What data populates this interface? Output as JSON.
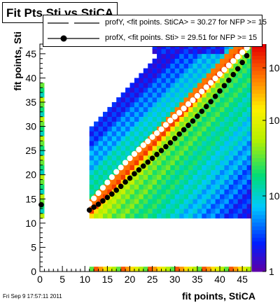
{
  "chart_data": {
    "type": "heatmap",
    "title": "Fit Pts Sti vs StiCA",
    "xlabel": "fit points, StiCA",
    "ylabel": "fit points, Sti",
    "xlim": [
      0,
      47
    ],
    "ylim": [
      0,
      47
    ],
    "x_ticks": [
      0,
      5,
      10,
      15,
      20,
      25,
      30,
      35,
      40,
      45
    ],
    "y_ticks": [
      0,
      5,
      10,
      15,
      20,
      25,
      30,
      35,
      40,
      45
    ],
    "z_scale": "log",
    "z_ticks": [
      "1",
      "10",
      "10",
      "10"
    ],
    "legend": [
      {
        "label": "profY, <fit points. StiCA> =   30.27 for NFP >= 15",
        "style": "dashed",
        "color": "#000000"
      },
      {
        "label": "profX, <fit points. Sti> =   29.51 for NFP >= 15",
        "style": "solid-marker",
        "color": "#000000"
      }
    ],
    "series": [
      {
        "style": "open-circle",
        "x": [
          11,
          12,
          13,
          14,
          15,
          16,
          17,
          18,
          19,
          20,
          21,
          22,
          23,
          24,
          25,
          26,
          27,
          28,
          29,
          30,
          31,
          32,
          33,
          34,
          35,
          36,
          37,
          38,
          39,
          40,
          41,
          42,
          43,
          44,
          45,
          46
        ],
        "y": [
          14,
          15.1,
          16.2,
          17.3,
          18.4,
          19.5,
          20.6,
          21.5,
          22.5,
          23.4,
          24.3,
          25.2,
          26.1,
          26.9,
          27.8,
          28.6,
          29.4,
          30.3,
          31.2,
          32.0,
          32.8,
          33.7,
          34.6,
          35.4,
          36.3,
          37.2,
          38.1,
          39.0,
          39.9,
          40.8,
          41.7,
          42.6,
          43.5,
          44.4,
          45.3,
          46.2
        ]
      },
      {
        "style": "filled-circle",
        "x": [
          11,
          12,
          13,
          14,
          15,
          16,
          17,
          18,
          19,
          20,
          21,
          22,
          23,
          24,
          25,
          26,
          27,
          28,
          29,
          30,
          31,
          32,
          33,
          34,
          35,
          36,
          37,
          38,
          39,
          40,
          41,
          42,
          43,
          44,
          45,
          46
        ],
        "y": [
          12.7,
          13.3,
          13.9,
          14.6,
          15.3,
          16.0,
          16.8,
          17.6,
          18.5,
          19.3,
          20.2,
          21.0,
          21.8,
          22.6,
          23.4,
          24.2,
          25.0,
          25.8,
          26.6,
          27.5,
          28.4,
          29.3,
          30.2,
          31.1,
          32.1,
          33.1,
          34.1,
          35.1,
          36.2,
          37.3,
          38.4,
          39.5,
          40.7,
          41.9,
          43.2,
          44.6
        ]
      }
    ],
    "x_marker": {
      "x": 0.3,
      "y": 13.8
    }
  },
  "footer": "Fri Sep  9 17:57:11 2011"
}
